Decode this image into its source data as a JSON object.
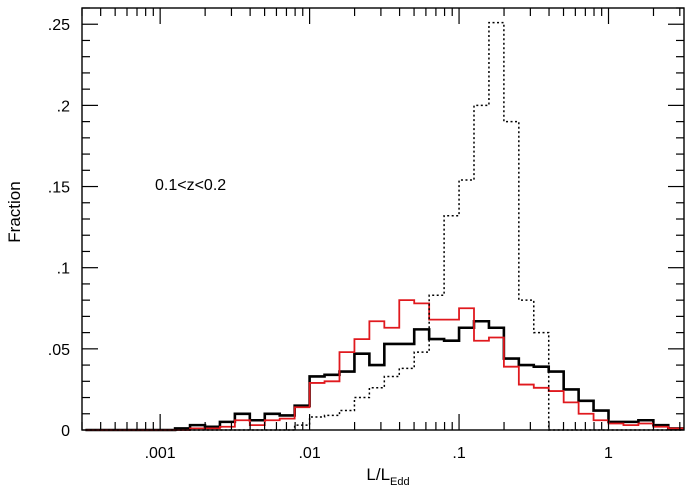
{
  "chart_data": {
    "type": "line",
    "xlabel_main": "L/L",
    "xlabel_sub": "Edd",
    "ylabel": "Fraction",
    "annotation": "0.1<z<0.2",
    "x_scale": "log",
    "xlim": [
      0.0003,
      3.2
    ],
    "ylim": [
      0,
      0.26
    ],
    "x_ticks": [
      {
        "value": 0.001,
        "label": ".001"
      },
      {
        "value": 0.01,
        "label": ".01"
      },
      {
        "value": 0.1,
        "label": ".1"
      },
      {
        "value": 1,
        "label": "1"
      }
    ],
    "y_ticks": [
      {
        "value": 0,
        "label": "0"
      },
      {
        "value": 0.05,
        "label": ".05"
      },
      {
        "value": 0.1,
        "label": ".1"
      },
      {
        "value": 0.15,
        "label": ".15"
      },
      {
        "value": 0.2,
        "label": ".2"
      },
      {
        "value": 0.25,
        "label": ".25"
      }
    ],
    "grid": false,
    "bin_edges_log10": [
      -3.5,
      -3.4,
      -3.3,
      -3.2,
      -3.1,
      -3.0,
      -2.9,
      -2.8,
      -2.7,
      -2.6,
      -2.5,
      -2.4,
      -2.3,
      -2.2,
      -2.1,
      -2.0,
      -1.9,
      -1.8,
      -1.7,
      -1.6,
      -1.5,
      -1.4,
      -1.3,
      -1.2,
      -1.1,
      -1.0,
      -0.9,
      -0.8,
      -0.7,
      -0.6,
      -0.5,
      -0.4,
      -0.3,
      -0.2,
      -0.1,
      0.0,
      0.1,
      0.2,
      0.3,
      0.4,
      0.5
    ],
    "series": [
      {
        "color": "#000000",
        "style": "solid-thick",
        "values": [
          0,
          0,
          0,
          0,
          0,
          0,
          0.001,
          0.003,
          0.002,
          0.005,
          0.01,
          0.006,
          0.01,
          0.009,
          0.015,
          0.033,
          0.034,
          0.036,
          0.047,
          0.04,
          0.053,
          0.053,
          0.062,
          0.056,
          0.055,
          0.063,
          0.067,
          0.063,
          0.044,
          0.04,
          0.039,
          0.036,
          0.025,
          0.018,
          0.012,
          0.005,
          0.005,
          0.006,
          0.003,
          0.001
        ]
      },
      {
        "color": "#e0191e",
        "style": "solid",
        "values": [
          0,
          0,
          0,
          0,
          0,
          0,
          0,
          0.001,
          0.001,
          0.002,
          0.006,
          0.003,
          0.006,
          0.007,
          0.014,
          0.029,
          0.03,
          0.048,
          0.056,
          0.067,
          0.063,
          0.08,
          0.078,
          0.068,
          0.068,
          0.075,
          0.055,
          0.057,
          0.039,
          0.028,
          0.026,
          0.024,
          0.017,
          0.01,
          0.006,
          0.004,
          0.003,
          0.004,
          0.002,
          0.001
        ]
      },
      {
        "color": "#000000",
        "style": "dotted",
        "values": [
          0,
          0,
          0,
          0,
          0,
          0,
          0,
          0,
          0,
          0,
          0,
          0,
          0,
          0,
          0.003,
          0.008,
          0.009,
          0.012,
          0.02,
          0.026,
          0.033,
          0.038,
          0.048,
          0.083,
          0.132,
          0.154,
          0.2,
          0.251,
          0.19,
          0.08,
          0.06,
          0,
          0,
          0,
          0,
          0,
          0,
          0,
          0,
          0
        ]
      }
    ]
  }
}
